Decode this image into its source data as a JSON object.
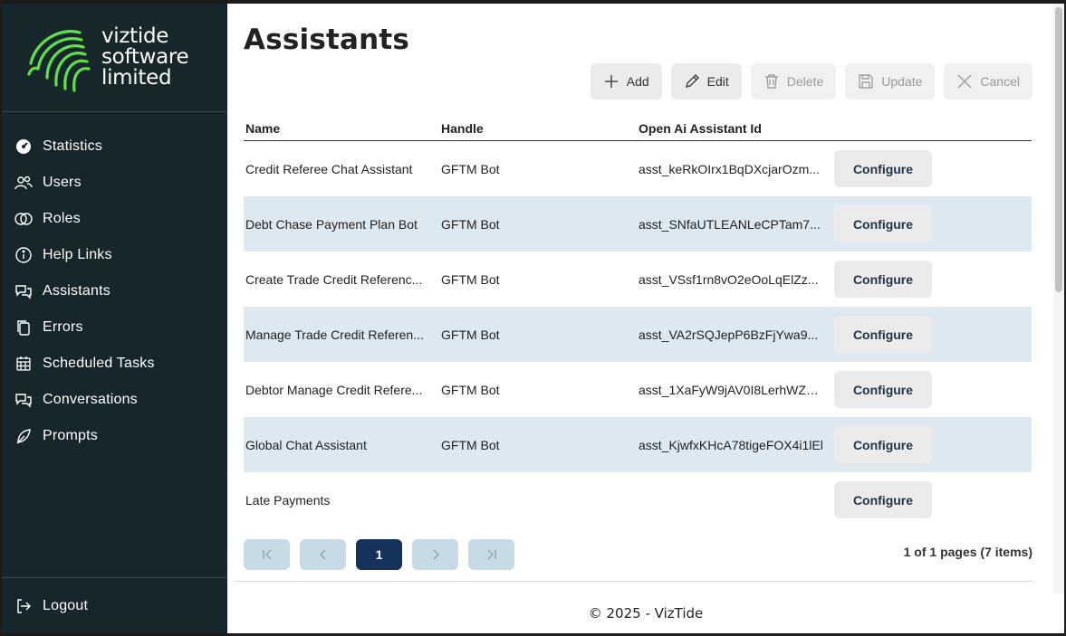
{
  "brand": {
    "line1": "viztide",
    "line2": "software",
    "line3": "limited",
    "color": "#5fe04a"
  },
  "sidebar": {
    "items": [
      {
        "label": "Statistics",
        "icon": "dashboard-icon"
      },
      {
        "label": "Users",
        "icon": "users-icon"
      },
      {
        "label": "Roles",
        "icon": "roles-icon"
      },
      {
        "label": "Help Links",
        "icon": "help-icon"
      },
      {
        "label": "Assistants",
        "icon": "chat-icon"
      },
      {
        "label": "Errors",
        "icon": "copy-icon"
      },
      {
        "label": "Scheduled Tasks",
        "icon": "calendar-icon"
      },
      {
        "label": "Conversations",
        "icon": "chat-icon"
      },
      {
        "label": "Prompts",
        "icon": "leaf-icon"
      }
    ],
    "logout": "Logout"
  },
  "page": {
    "title": "Assistants"
  },
  "toolbar": {
    "add": "Add",
    "edit": "Edit",
    "delete": "Delete",
    "update": "Update",
    "cancel": "Cancel"
  },
  "table": {
    "headers": {
      "name": "Name",
      "handle": "Handle",
      "openai": "Open Ai Assistant Id"
    },
    "configure_label": "Configure",
    "rows": [
      {
        "name": "Credit Referee Chat Assistant",
        "handle": "GFTM Bot",
        "openai": "asst_keRkOIrx1BqDXcjarOzm..."
      },
      {
        "name": "Debt Chase Payment Plan Bot",
        "handle": "GFTM Bot",
        "openai": "asst_SNfaUTLEANLeCPTam7..."
      },
      {
        "name": "Create Trade Credit Referenc...",
        "handle": "GFTM Bot",
        "openai": "asst_VSsf1rn8vO2eOoLqElZz..."
      },
      {
        "name": "Manage Trade Credit Referen...",
        "handle": "GFTM Bot",
        "openai": "asst_VA2rSQJepP6BzFjYwa9..."
      },
      {
        "name": "Debtor Manage Credit Refere...",
        "handle": "GFTM Bot",
        "openai": "asst_1XaFyW9jAV0I8LerhWZe..."
      },
      {
        "name": "Global Chat Assistant",
        "handle": "GFTM Bot",
        "openai": "asst_KjwfxKHcA78tigeFOX4i1lEl"
      },
      {
        "name": "Late Payments",
        "handle": "",
        "openai": ""
      }
    ]
  },
  "pager": {
    "current": "1",
    "info": "1 of 1 pages (7 items)"
  },
  "footer": {
    "text": "© 2025 - VizTide"
  }
}
